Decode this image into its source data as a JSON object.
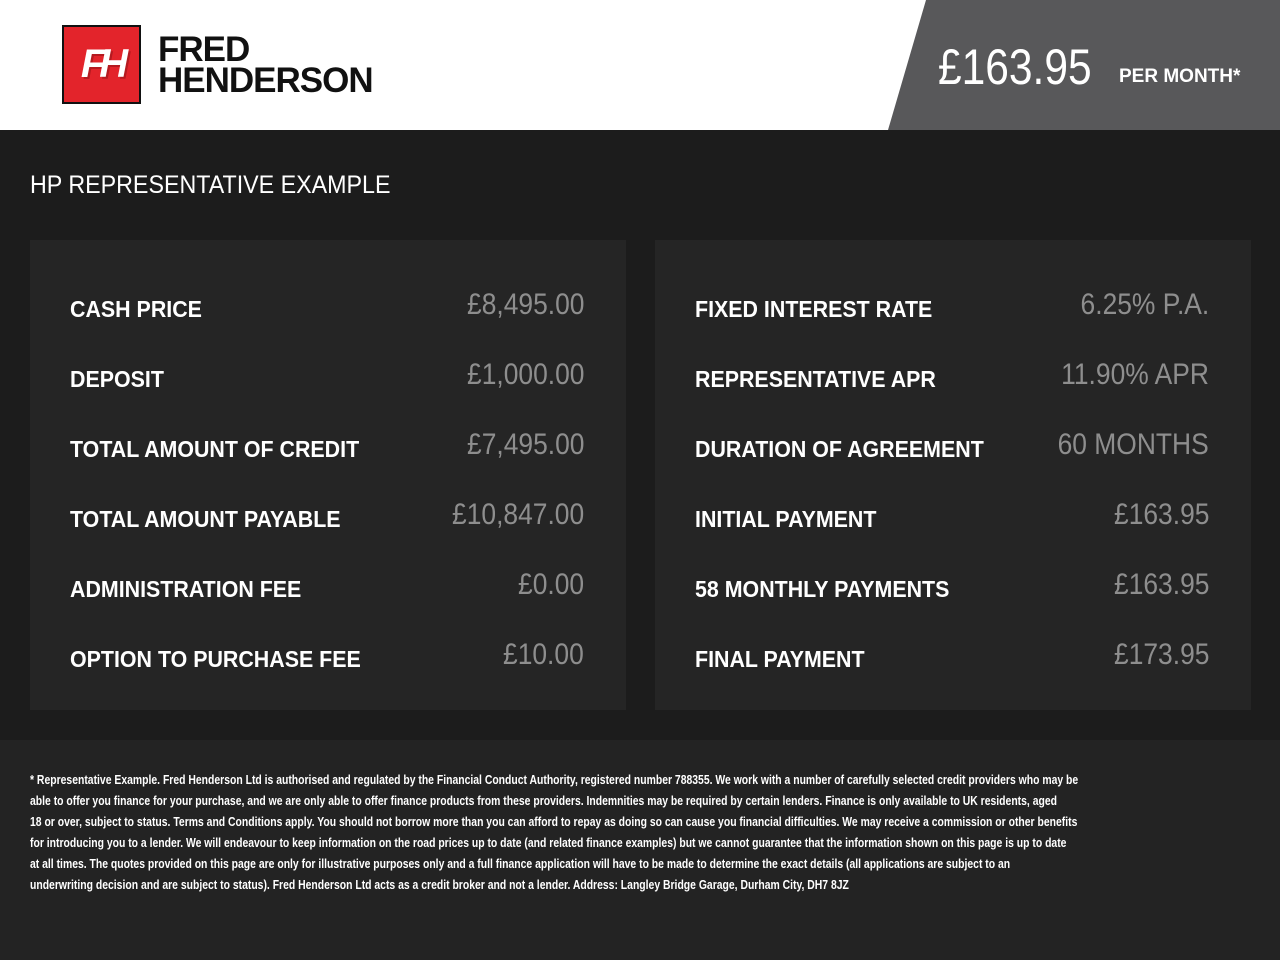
{
  "header": {
    "logo_mark": "FH",
    "logo_line1": "FRED",
    "logo_line2": "HENDERSON",
    "price": "£163.95",
    "per_month": "PER MONTH*",
    "brand_color": "#e3242b"
  },
  "title": "HP REPRESENTATIVE EXAMPLE",
  "left_panel": [
    {
      "label": "CASH PRICE",
      "value": "£8,495.00"
    },
    {
      "label": "DEPOSIT",
      "value": "£1,000.00"
    },
    {
      "label": "TOTAL AMOUNT OF CREDIT",
      "value": "£7,495.00"
    },
    {
      "label": "TOTAL AMOUNT PAYABLE",
      "value": "£10,847.00"
    },
    {
      "label": "ADMINISTRATION FEE",
      "value": "£0.00"
    },
    {
      "label": "OPTION TO PURCHASE FEE",
      "value": "£10.00"
    }
  ],
  "right_panel": [
    {
      "label": "FIXED INTEREST RATE",
      "value": "6.25% P.A."
    },
    {
      "label": "REPRESENTATIVE APR",
      "value": "11.90% APR"
    },
    {
      "label": "DURATION OF AGREEMENT",
      "value": "60 MONTHS"
    },
    {
      "label": "INITIAL PAYMENT",
      "value": "£163.95"
    },
    {
      "label": "58 MONTHLY PAYMENTS",
      "value": "£163.95"
    },
    {
      "label": "FINAL PAYMENT",
      "value": "£173.95"
    }
  ],
  "footer_lines": [
    "* Representative Example. Fred Henderson Ltd is authorised and regulated by the Financial Conduct Authority, registered number 788355. We work with a number of carefully selected credit providers who may be",
    "able to offer you finance for your purchase, and we are only able to offer finance products from these providers. Indemnities may be required by certain lenders. Finance is only available to UK residents, aged",
    "18 or over, subject to status. Terms and Conditions apply. You should not borrow more than you can afford to repay as doing so can cause you financial difficulties. We may receive a commission or other benefits",
    "for introducing you to a lender. We will endeavour to keep information on the road prices up to date (and related finance examples) but we cannot guarantee that the information shown on this page is up to date",
    "at all times. The quotes provided on this page are only for illustrative purposes only and a full finance application will have to be made to determine the exact details (all applications are subject to an",
    "underwriting decision and are subject to status). Fred Henderson Ltd acts as a credit broker and not a lender. Address: Langley Bridge Garage, Durham City, DH7 8JZ"
  ]
}
